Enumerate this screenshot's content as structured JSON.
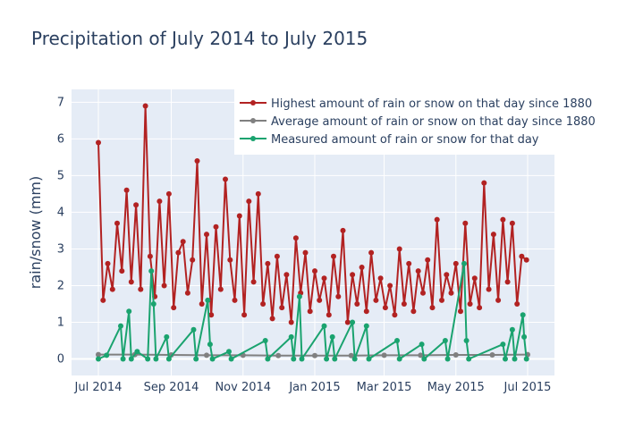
{
  "chart_data": {
    "type": "line",
    "title": "Precipitation of July 2014 to July 2015",
    "xlabel": "",
    "ylabel": "rain/snow (mm)",
    "x_range": [
      "2014-07-01",
      "2015-07-01"
    ],
    "x_ticks": [
      "Jul 2014",
      "Sep 2014",
      "Nov 2014",
      "Jan 2015",
      "Mar 2015",
      "May 2015",
      "Jul 2015"
    ],
    "x_tick_dates": [
      "2014-07-01",
      "2014-09-01",
      "2014-11-01",
      "2015-01-01",
      "2015-03-01",
      "2015-05-01",
      "2015-07-01"
    ],
    "y_ticks": [
      0,
      1,
      2,
      3,
      4,
      5,
      6,
      7
    ],
    "ylim": [
      -0.45,
      7.35
    ],
    "grid": true,
    "legend_position": "top-right",
    "series": [
      {
        "name": "Highest amount of rain or snow on that day since 1880",
        "color": "#b22222",
        "points": [
          [
            "2014-07-01",
            5.9
          ],
          [
            "2014-07-05",
            1.6
          ],
          [
            "2014-07-09",
            2.6
          ],
          [
            "2014-07-13",
            1.9
          ],
          [
            "2014-07-17",
            3.7
          ],
          [
            "2014-07-21",
            2.4
          ],
          [
            "2014-07-25",
            4.6
          ],
          [
            "2014-07-29",
            2.1
          ],
          [
            "2014-08-02",
            4.2
          ],
          [
            "2014-08-06",
            1.9
          ],
          [
            "2014-08-10",
            6.9
          ],
          [
            "2014-08-14",
            2.8
          ],
          [
            "2014-08-18",
            1.7
          ],
          [
            "2014-08-22",
            4.3
          ],
          [
            "2014-08-26",
            2.0
          ],
          [
            "2014-08-30",
            4.5
          ],
          [
            "2014-09-03",
            1.4
          ],
          [
            "2014-09-07",
            2.9
          ],
          [
            "2014-09-11",
            3.2
          ],
          [
            "2014-09-15",
            1.8
          ],
          [
            "2014-09-19",
            2.7
          ],
          [
            "2014-09-23",
            5.4
          ],
          [
            "2014-09-27",
            1.5
          ],
          [
            "2014-10-01",
            3.4
          ],
          [
            "2014-10-05",
            1.2
          ],
          [
            "2014-10-09",
            3.6
          ],
          [
            "2014-10-13",
            1.9
          ],
          [
            "2014-10-17",
            4.9
          ],
          [
            "2014-10-21",
            2.7
          ],
          [
            "2014-10-25",
            1.6
          ],
          [
            "2014-10-29",
            3.9
          ],
          [
            "2014-11-02",
            1.2
          ],
          [
            "2014-11-06",
            4.3
          ],
          [
            "2014-11-10",
            2.1
          ],
          [
            "2014-11-14",
            4.5
          ],
          [
            "2014-11-18",
            1.5
          ],
          [
            "2014-11-22",
            2.6
          ],
          [
            "2014-11-26",
            1.1
          ],
          [
            "2014-11-30",
            2.8
          ],
          [
            "2014-12-04",
            1.4
          ],
          [
            "2014-12-08",
            2.3
          ],
          [
            "2014-12-12",
            1.0
          ],
          [
            "2014-12-16",
            3.3
          ],
          [
            "2014-12-20",
            1.8
          ],
          [
            "2014-12-24",
            2.9
          ],
          [
            "2014-12-28",
            1.3
          ],
          [
            "2015-01-01",
            2.4
          ],
          [
            "2015-01-05",
            1.6
          ],
          [
            "2015-01-09",
            2.2
          ],
          [
            "2015-01-13",
            1.2
          ],
          [
            "2015-01-17",
            2.8
          ],
          [
            "2015-01-21",
            1.7
          ],
          [
            "2015-01-25",
            3.5
          ],
          [
            "2015-01-29",
            1.0
          ],
          [
            "2015-02-02",
            2.3
          ],
          [
            "2015-02-06",
            1.5
          ],
          [
            "2015-02-10",
            2.5
          ],
          [
            "2015-02-14",
            1.3
          ],
          [
            "2015-02-18",
            2.9
          ],
          [
            "2015-02-22",
            1.6
          ],
          [
            "2015-02-26",
            2.2
          ],
          [
            "2015-03-02",
            1.4
          ],
          [
            "2015-03-06",
            2.0
          ],
          [
            "2015-03-10",
            1.2
          ],
          [
            "2015-03-14",
            3.0
          ],
          [
            "2015-03-18",
            1.5
          ],
          [
            "2015-03-22",
            2.6
          ],
          [
            "2015-03-26",
            1.3
          ],
          [
            "2015-03-30",
            2.4
          ],
          [
            "2015-04-03",
            1.8
          ],
          [
            "2015-04-07",
            2.7
          ],
          [
            "2015-04-11",
            1.4
          ],
          [
            "2015-04-15",
            3.8
          ],
          [
            "2015-04-19",
            1.6
          ],
          [
            "2015-04-23",
            2.3
          ],
          [
            "2015-04-27",
            1.8
          ],
          [
            "2015-05-01",
            2.6
          ],
          [
            "2015-05-05",
            1.3
          ],
          [
            "2015-05-09",
            3.7
          ],
          [
            "2015-05-13",
            1.5
          ],
          [
            "2015-05-17",
            2.2
          ],
          [
            "2015-05-21",
            1.4
          ],
          [
            "2015-05-25",
            4.8
          ],
          [
            "2015-05-29",
            1.9
          ],
          [
            "2015-06-02",
            3.4
          ],
          [
            "2015-06-06",
            1.6
          ],
          [
            "2015-06-10",
            3.8
          ],
          [
            "2015-06-14",
            2.1
          ],
          [
            "2015-06-18",
            3.7
          ],
          [
            "2015-06-22",
            1.5
          ],
          [
            "2015-06-26",
            2.8
          ],
          [
            "2015-06-30",
            2.7
          ]
        ]
      },
      {
        "name": "Average amount of rain or snow on that day since 1880",
        "color": "#808080",
        "points": [
          [
            "2014-07-01",
            0.12
          ],
          [
            "2014-08-01",
            0.12
          ],
          [
            "2014-09-01",
            0.11
          ],
          [
            "2014-10-01",
            0.1
          ],
          [
            "2014-11-01",
            0.1
          ],
          [
            "2014-12-01",
            0.09
          ],
          [
            "2015-01-01",
            0.09
          ],
          [
            "2015-02-01",
            0.09
          ],
          [
            "2015-03-01",
            0.1
          ],
          [
            "2015-04-01",
            0.1
          ],
          [
            "2015-05-01",
            0.11
          ],
          [
            "2015-06-01",
            0.11
          ],
          [
            "2015-07-01",
            0.12
          ]
        ]
      },
      {
        "name": "Measured amount of rain or snow for that day",
        "color": "#1aa36f",
        "points": [
          [
            "2014-07-01",
            0.0
          ],
          [
            "2014-07-08",
            0.1
          ],
          [
            "2014-07-20",
            0.9
          ],
          [
            "2014-07-22",
            0.0
          ],
          [
            "2014-07-27",
            1.3
          ],
          [
            "2014-07-29",
            0.0
          ],
          [
            "2014-08-03",
            0.2
          ],
          [
            "2014-08-12",
            0.0
          ],
          [
            "2014-08-15",
            2.4
          ],
          [
            "2014-08-17",
            1.5
          ],
          [
            "2014-08-19",
            0.0
          ],
          [
            "2014-08-28",
            0.6
          ],
          [
            "2014-08-30",
            0.0
          ],
          [
            "2014-09-20",
            0.8
          ],
          [
            "2014-09-22",
            0.0
          ],
          [
            "2014-10-02",
            1.6
          ],
          [
            "2014-10-04",
            0.4
          ],
          [
            "2014-10-06",
            0.0
          ],
          [
            "2014-10-20",
            0.2
          ],
          [
            "2014-10-22",
            0.0
          ],
          [
            "2014-11-20",
            0.5
          ],
          [
            "2014-11-22",
            0.0
          ],
          [
            "2014-12-12",
            0.6
          ],
          [
            "2014-12-14",
            0.0
          ],
          [
            "2014-12-19",
            1.7
          ],
          [
            "2014-12-21",
            0.0
          ],
          [
            "2015-01-09",
            0.9
          ],
          [
            "2015-01-11",
            0.0
          ],
          [
            "2015-01-16",
            0.6
          ],
          [
            "2015-01-18",
            0.0
          ],
          [
            "2015-02-02",
            1.0
          ],
          [
            "2015-02-04",
            0.0
          ],
          [
            "2015-02-14",
            0.9
          ],
          [
            "2015-02-16",
            0.0
          ],
          [
            "2015-03-12",
            0.5
          ],
          [
            "2015-03-14",
            0.0
          ],
          [
            "2015-04-02",
            0.4
          ],
          [
            "2015-04-04",
            0.0
          ],
          [
            "2015-04-22",
            0.5
          ],
          [
            "2015-04-24",
            0.0
          ],
          [
            "2015-05-08",
            2.6
          ],
          [
            "2015-05-10",
            0.5
          ],
          [
            "2015-05-12",
            0.0
          ],
          [
            "2015-06-10",
            0.4
          ],
          [
            "2015-06-12",
            0.0
          ],
          [
            "2015-06-18",
            0.8
          ],
          [
            "2015-06-20",
            0.0
          ],
          [
            "2015-06-27",
            1.2
          ],
          [
            "2015-06-28",
            0.6
          ],
          [
            "2015-06-30",
            0.0
          ]
        ]
      }
    ]
  }
}
